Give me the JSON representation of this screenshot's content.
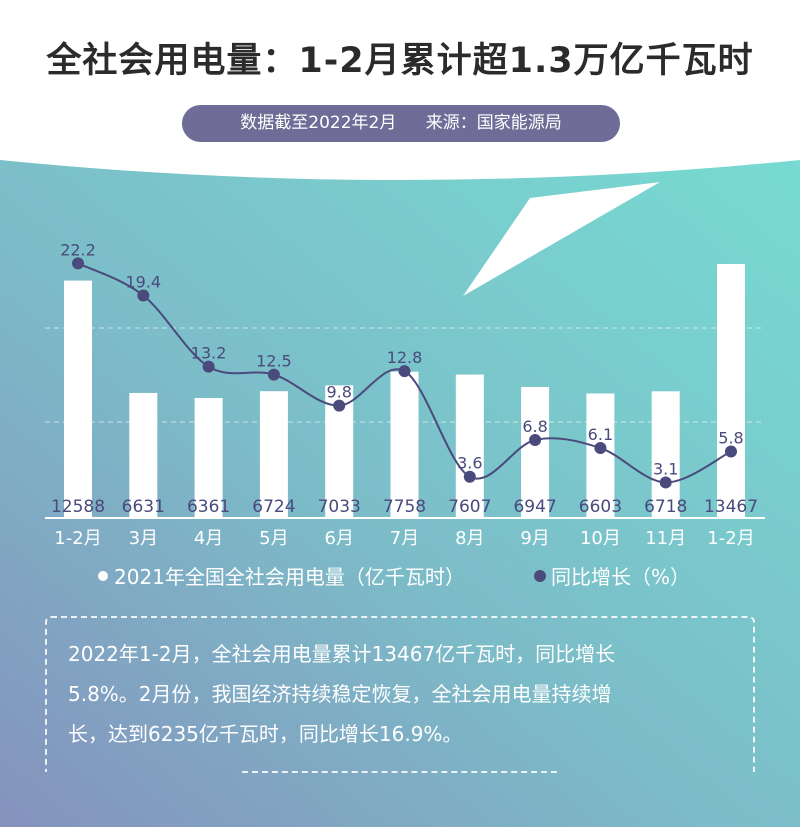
{
  "header": {
    "title": "全社会用电量：1-2月累计超1.3万亿千瓦时",
    "data_date": "数据截至2022年2月",
    "source": "来源：国家能源局"
  },
  "colors": {
    "bar": "#ffffff",
    "line": "#4a4a7c",
    "pill": "#6f6c98",
    "bg_teal": "#77d8d1",
    "bg_purple": "#8591bd"
  },
  "chart_data": {
    "type": "bar+line",
    "categories": [
      "1-2月",
      "3月",
      "4月",
      "5月",
      "6月",
      "7月",
      "8月",
      "9月",
      "10月",
      "11月",
      "1-2月"
    ],
    "series": [
      {
        "name": "2021年全国全社会用电量（亿千瓦时）",
        "type": "bar",
        "values": [
          12588,
          6631,
          6361,
          6724,
          7033,
          7758,
          7607,
          6947,
          6603,
          6718,
          13467
        ]
      },
      {
        "name": "同比增长（%）",
        "type": "line",
        "values": [
          22.2,
          19.4,
          13.2,
          12.5,
          9.8,
          12.8,
          3.6,
          6.8,
          6.1,
          3.1,
          5.8
        ]
      }
    ],
    "legend_position": "bottom",
    "grid": "dashed horizontal"
  },
  "note": {
    "lines": [
      "2022年1-2月，全社会用电量累计13467亿千瓦时，同比增长",
      "5.8%。2月份，我国经济持续稳定恢复，全社会用电量持续增",
      "长，达到6235亿千瓦时，同比增长16.9%。"
    ]
  }
}
